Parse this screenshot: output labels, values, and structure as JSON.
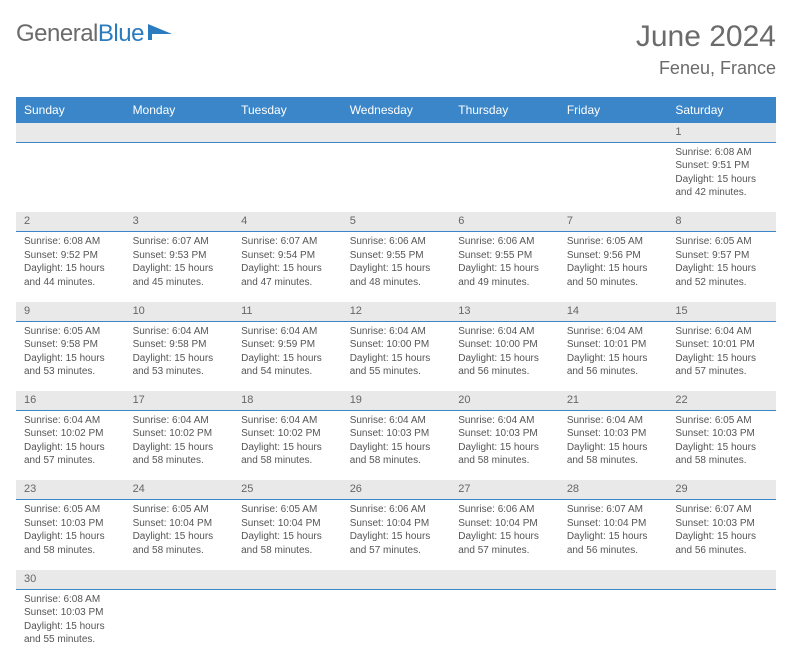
{
  "logo": {
    "text1": "General",
    "text2": "Blue"
  },
  "header": {
    "month": "June 2024",
    "location": "Feneu, France"
  },
  "colors": {
    "header_bg": "#3a86c8",
    "header_fg": "#ffffff",
    "daynum_bg": "#e9e9e9",
    "border": "#3a86c8",
    "text_gray": "#6b6b6b",
    "body_text": "#555555",
    "logo_blue": "#2b7bbf"
  },
  "weekdays": [
    "Sunday",
    "Monday",
    "Tuesday",
    "Wednesday",
    "Thursday",
    "Friday",
    "Saturday"
  ],
  "weeks": [
    {
      "nums": [
        "",
        "",
        "",
        "",
        "",
        "",
        "1"
      ],
      "cells": [
        null,
        null,
        null,
        null,
        null,
        null,
        {
          "sr": "Sunrise: 6:08 AM",
          "ss": "Sunset: 9:51 PM",
          "dl1": "Daylight: 15 hours",
          "dl2": "and 42 minutes."
        }
      ]
    },
    {
      "nums": [
        "2",
        "3",
        "4",
        "5",
        "6",
        "7",
        "8"
      ],
      "cells": [
        {
          "sr": "Sunrise: 6:08 AM",
          "ss": "Sunset: 9:52 PM",
          "dl1": "Daylight: 15 hours",
          "dl2": "and 44 minutes."
        },
        {
          "sr": "Sunrise: 6:07 AM",
          "ss": "Sunset: 9:53 PM",
          "dl1": "Daylight: 15 hours",
          "dl2": "and 45 minutes."
        },
        {
          "sr": "Sunrise: 6:07 AM",
          "ss": "Sunset: 9:54 PM",
          "dl1": "Daylight: 15 hours",
          "dl2": "and 47 minutes."
        },
        {
          "sr": "Sunrise: 6:06 AM",
          "ss": "Sunset: 9:55 PM",
          "dl1": "Daylight: 15 hours",
          "dl2": "and 48 minutes."
        },
        {
          "sr": "Sunrise: 6:06 AM",
          "ss": "Sunset: 9:55 PM",
          "dl1": "Daylight: 15 hours",
          "dl2": "and 49 minutes."
        },
        {
          "sr": "Sunrise: 6:05 AM",
          "ss": "Sunset: 9:56 PM",
          "dl1": "Daylight: 15 hours",
          "dl2": "and 50 minutes."
        },
        {
          "sr": "Sunrise: 6:05 AM",
          "ss": "Sunset: 9:57 PM",
          "dl1": "Daylight: 15 hours",
          "dl2": "and 52 minutes."
        }
      ]
    },
    {
      "nums": [
        "9",
        "10",
        "11",
        "12",
        "13",
        "14",
        "15"
      ],
      "cells": [
        {
          "sr": "Sunrise: 6:05 AM",
          "ss": "Sunset: 9:58 PM",
          "dl1": "Daylight: 15 hours",
          "dl2": "and 53 minutes."
        },
        {
          "sr": "Sunrise: 6:04 AM",
          "ss": "Sunset: 9:58 PM",
          "dl1": "Daylight: 15 hours",
          "dl2": "and 53 minutes."
        },
        {
          "sr": "Sunrise: 6:04 AM",
          "ss": "Sunset: 9:59 PM",
          "dl1": "Daylight: 15 hours",
          "dl2": "and 54 minutes."
        },
        {
          "sr": "Sunrise: 6:04 AM",
          "ss": "Sunset: 10:00 PM",
          "dl1": "Daylight: 15 hours",
          "dl2": "and 55 minutes."
        },
        {
          "sr": "Sunrise: 6:04 AM",
          "ss": "Sunset: 10:00 PM",
          "dl1": "Daylight: 15 hours",
          "dl2": "and 56 minutes."
        },
        {
          "sr": "Sunrise: 6:04 AM",
          "ss": "Sunset: 10:01 PM",
          "dl1": "Daylight: 15 hours",
          "dl2": "and 56 minutes."
        },
        {
          "sr": "Sunrise: 6:04 AM",
          "ss": "Sunset: 10:01 PM",
          "dl1": "Daylight: 15 hours",
          "dl2": "and 57 minutes."
        }
      ]
    },
    {
      "nums": [
        "16",
        "17",
        "18",
        "19",
        "20",
        "21",
        "22"
      ],
      "cells": [
        {
          "sr": "Sunrise: 6:04 AM",
          "ss": "Sunset: 10:02 PM",
          "dl1": "Daylight: 15 hours",
          "dl2": "and 57 minutes."
        },
        {
          "sr": "Sunrise: 6:04 AM",
          "ss": "Sunset: 10:02 PM",
          "dl1": "Daylight: 15 hours",
          "dl2": "and 58 minutes."
        },
        {
          "sr": "Sunrise: 6:04 AM",
          "ss": "Sunset: 10:02 PM",
          "dl1": "Daylight: 15 hours",
          "dl2": "and 58 minutes."
        },
        {
          "sr": "Sunrise: 6:04 AM",
          "ss": "Sunset: 10:03 PM",
          "dl1": "Daylight: 15 hours",
          "dl2": "and 58 minutes."
        },
        {
          "sr": "Sunrise: 6:04 AM",
          "ss": "Sunset: 10:03 PM",
          "dl1": "Daylight: 15 hours",
          "dl2": "and 58 minutes."
        },
        {
          "sr": "Sunrise: 6:04 AM",
          "ss": "Sunset: 10:03 PM",
          "dl1": "Daylight: 15 hours",
          "dl2": "and 58 minutes."
        },
        {
          "sr": "Sunrise: 6:05 AM",
          "ss": "Sunset: 10:03 PM",
          "dl1": "Daylight: 15 hours",
          "dl2": "and 58 minutes."
        }
      ]
    },
    {
      "nums": [
        "23",
        "24",
        "25",
        "26",
        "27",
        "28",
        "29"
      ],
      "cells": [
        {
          "sr": "Sunrise: 6:05 AM",
          "ss": "Sunset: 10:03 PM",
          "dl1": "Daylight: 15 hours",
          "dl2": "and 58 minutes."
        },
        {
          "sr": "Sunrise: 6:05 AM",
          "ss": "Sunset: 10:04 PM",
          "dl1": "Daylight: 15 hours",
          "dl2": "and 58 minutes."
        },
        {
          "sr": "Sunrise: 6:05 AM",
          "ss": "Sunset: 10:04 PM",
          "dl1": "Daylight: 15 hours",
          "dl2": "and 58 minutes."
        },
        {
          "sr": "Sunrise: 6:06 AM",
          "ss": "Sunset: 10:04 PM",
          "dl1": "Daylight: 15 hours",
          "dl2": "and 57 minutes."
        },
        {
          "sr": "Sunrise: 6:06 AM",
          "ss": "Sunset: 10:04 PM",
          "dl1": "Daylight: 15 hours",
          "dl2": "and 57 minutes."
        },
        {
          "sr": "Sunrise: 6:07 AM",
          "ss": "Sunset: 10:04 PM",
          "dl1": "Daylight: 15 hours",
          "dl2": "and 56 minutes."
        },
        {
          "sr": "Sunrise: 6:07 AM",
          "ss": "Sunset: 10:03 PM",
          "dl1": "Daylight: 15 hours",
          "dl2": "and 56 minutes."
        }
      ]
    },
    {
      "nums": [
        "30",
        "",
        "",
        "",
        "",
        "",
        ""
      ],
      "cells": [
        {
          "sr": "Sunrise: 6:08 AM",
          "ss": "Sunset: 10:03 PM",
          "dl1": "Daylight: 15 hours",
          "dl2": "and 55 minutes."
        },
        null,
        null,
        null,
        null,
        null,
        null
      ]
    }
  ]
}
